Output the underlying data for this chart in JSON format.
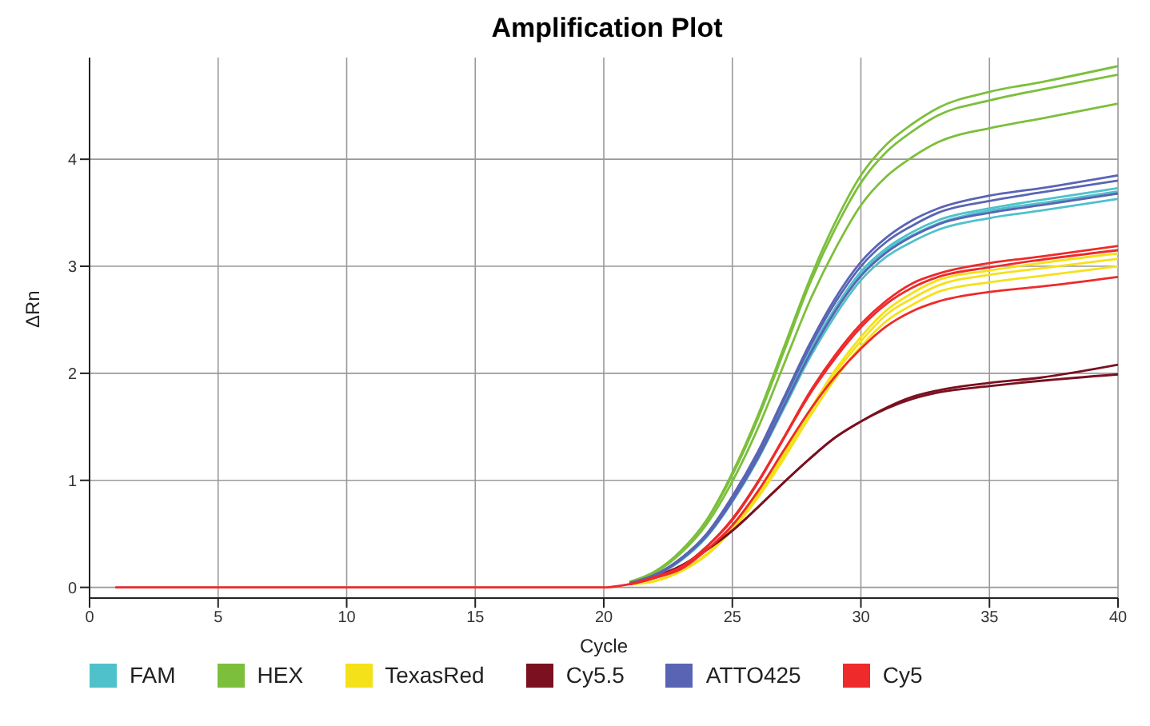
{
  "chart_data": {
    "type": "line",
    "title": "Amplification Plot",
    "xlabel": "Cycle",
    "ylabel": "ΔRn",
    "x": [
      1,
      20,
      21,
      22,
      23,
      24,
      25,
      26,
      27,
      28,
      29,
      30,
      31,
      32,
      33,
      35,
      37,
      40
    ],
    "xlim": [
      0,
      40
    ],
    "xticks": [
      0,
      5,
      10,
      15,
      20,
      25,
      30,
      35,
      40
    ],
    "ylim": [
      -0.1,
      4.95
    ],
    "yticks": [
      0,
      1,
      2,
      3,
      4
    ],
    "grid": true,
    "legend": "bottom",
    "marker": "none",
    "line_style": "solid",
    "series": [
      {
        "name": "FAM",
        "color": "#4fc1cb",
        "values": [
          null,
          null,
          0.04,
          0.11,
          0.26,
          0.48,
          0.82,
          1.23,
          1.72,
          2.2,
          2.61,
          2.95,
          3.17,
          3.32,
          3.43,
          3.54,
          3.62,
          3.73
        ]
      },
      {
        "color": "#4fc1cb",
        "values": [
          null,
          null,
          0.04,
          0.11,
          0.26,
          0.48,
          0.81,
          1.22,
          1.7,
          2.18,
          2.59,
          2.92,
          3.15,
          3.29,
          3.4,
          3.52,
          3.59,
          3.7
        ]
      },
      {
        "color": "#4fc1cb",
        "values": [
          null,
          null,
          0.04,
          0.11,
          0.25,
          0.47,
          0.8,
          1.2,
          1.67,
          2.14,
          2.54,
          2.87,
          3.09,
          3.23,
          3.34,
          3.45,
          3.52,
          3.63
        ]
      },
      {
        "name": "HEX",
        "color": "#7cbf3c",
        "values": [
          null,
          null,
          0.05,
          0.15,
          0.34,
          0.63,
          1.07,
          1.61,
          2.24,
          2.87,
          3.41,
          3.85,
          4.14,
          4.33,
          4.48,
          4.63,
          4.72,
          4.87
        ]
      },
      {
        "color": "#7cbf3c",
        "values": [
          null,
          null,
          0.05,
          0.14,
          0.34,
          0.62,
          1.05,
          1.58,
          2.2,
          2.83,
          3.35,
          3.78,
          4.07,
          4.26,
          4.41,
          4.55,
          4.65,
          4.79
        ]
      },
      {
        "color": "#7cbf3c",
        "values": [
          null,
          null,
          0.05,
          0.14,
          0.32,
          0.59,
          0.99,
          1.49,
          2.08,
          2.67,
          3.16,
          3.57,
          3.84,
          4.02,
          4.16,
          4.29,
          4.38,
          4.52
        ]
      },
      {
        "name": "TexasRed",
        "color": "#f5e11a",
        "values": [
          null,
          null,
          0.03,
          0.06,
          0.16,
          0.31,
          0.56,
          0.87,
          1.25,
          1.65,
          2.03,
          2.34,
          2.59,
          2.75,
          2.87,
          2.96,
          3.03,
          3.12
        ]
      },
      {
        "color": "#f5e11a",
        "values": [
          null,
          null,
          0.03,
          0.06,
          0.15,
          0.31,
          0.55,
          0.86,
          1.23,
          1.63,
          2,
          2.3,
          2.55,
          2.7,
          2.82,
          2.92,
          2.98,
          3.07
        ]
      },
      {
        "color": "#f5e11a",
        "values": [
          null,
          null,
          0.03,
          0.06,
          0.15,
          0.3,
          0.54,
          0.84,
          1.2,
          1.59,
          1.95,
          2.25,
          2.49,
          2.64,
          2.76,
          2.85,
          2.91,
          3
        ]
      },
      {
        "name": "Cy5.5",
        "color": "#7a1020",
        "values": [
          null,
          null,
          0.03,
          0.1,
          0.2,
          0.35,
          0.53,
          0.75,
          0.98,
          1.2,
          1.4,
          1.55,
          1.68,
          1.78,
          1.84,
          1.91,
          1.96,
          2.08
        ]
      },
      {
        "color": "#7a1020",
        "values": [
          null,
          null,
          0.03,
          0.1,
          0.2,
          0.35,
          0.53,
          0.75,
          0.98,
          1.2,
          1.4,
          1.55,
          1.67,
          1.76,
          1.82,
          1.88,
          1.93,
          1.99
        ]
      },
      {
        "name": "ATTO425",
        "color": "#5a64b4",
        "values": [
          null,
          null,
          0.04,
          0.12,
          0.27,
          0.5,
          0.85,
          1.27,
          1.77,
          2.27,
          2.7,
          3.04,
          3.27,
          3.43,
          3.54,
          3.66,
          3.73,
          3.85
        ]
      },
      {
        "color": "#5a64b4",
        "values": [
          null,
          null,
          0.04,
          0.11,
          0.27,
          0.49,
          0.84,
          1.25,
          1.75,
          2.24,
          2.66,
          3,
          3.23,
          3.38,
          3.5,
          3.61,
          3.69,
          3.8
        ]
      },
      {
        "color": "#5a64b4",
        "values": [
          null,
          null,
          0.04,
          0.11,
          0.26,
          0.48,
          0.81,
          1.21,
          1.69,
          2.17,
          2.58,
          2.91,
          3.13,
          3.28,
          3.39,
          3.5,
          3.57,
          3.68
        ]
      },
      {
        "name": "Cy5",
        "color": "#ee2a2a",
        "values": [
          null,
          null,
          0.03,
          0.1,
          0.19,
          0.38,
          0.64,
          0.99,
          1.4,
          1.82,
          2.17,
          2.46,
          2.68,
          2.84,
          2.93,
          3.03,
          3.09,
          3.19
        ]
      },
      {
        "color": "#ee2a2a",
        "values": [
          null,
          null,
          0.03,
          0.09,
          0.19,
          0.38,
          0.63,
          0.98,
          1.39,
          1.8,
          2.14,
          2.43,
          2.65,
          2.8,
          2.9,
          2.99,
          3.06,
          3.15
        ]
      },
      {
        "color": "#ee2a2a",
        "values": [
          0,
          0,
          0.03,
          0.09,
          0.17,
          0.35,
          0.58,
          0.9,
          1.28,
          1.65,
          1.97,
          2.23,
          2.44,
          2.58,
          2.67,
          2.76,
          2.81,
          2.9
        ]
      }
    ]
  }
}
